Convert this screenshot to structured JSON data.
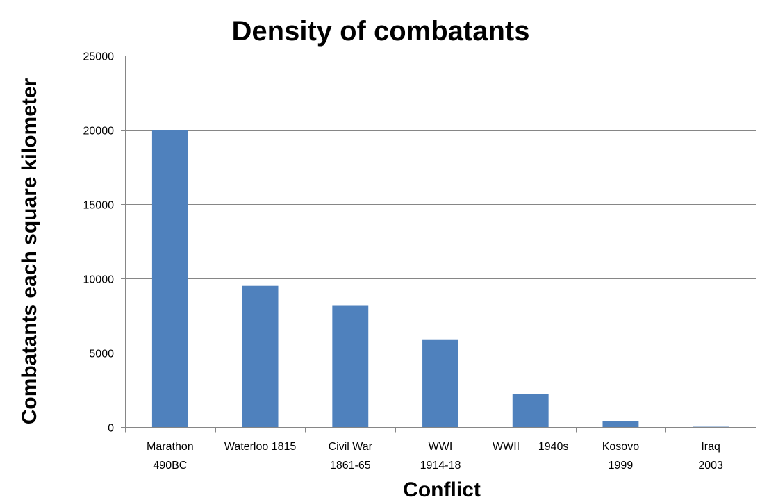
{
  "chart_data": {
    "type": "bar",
    "title": "Density of combatants",
    "xlabel": "Conflict",
    "ylabel": "Combatants each square kilometer",
    "ylim": [
      0,
      25000
    ],
    "y_ticks": [
      "0",
      "5000",
      "10000",
      "15000",
      "20000",
      "25000"
    ],
    "grid": true,
    "legend": "none",
    "bar_color": "#4F81BD",
    "categories": [
      [
        "Marathon",
        "490BC"
      ],
      [
        "Waterloo 1815"
      ],
      [
        "Civil War",
        "1861-65"
      ],
      [
        "WWI",
        "1914-18"
      ],
      [
        "WWII      1940s"
      ],
      [
        "Kosovo",
        "1999"
      ],
      [
        "Iraq",
        "2003"
      ]
    ],
    "values": [
      20000,
      9500,
      8200,
      5900,
      2200,
      400,
      20
    ]
  }
}
